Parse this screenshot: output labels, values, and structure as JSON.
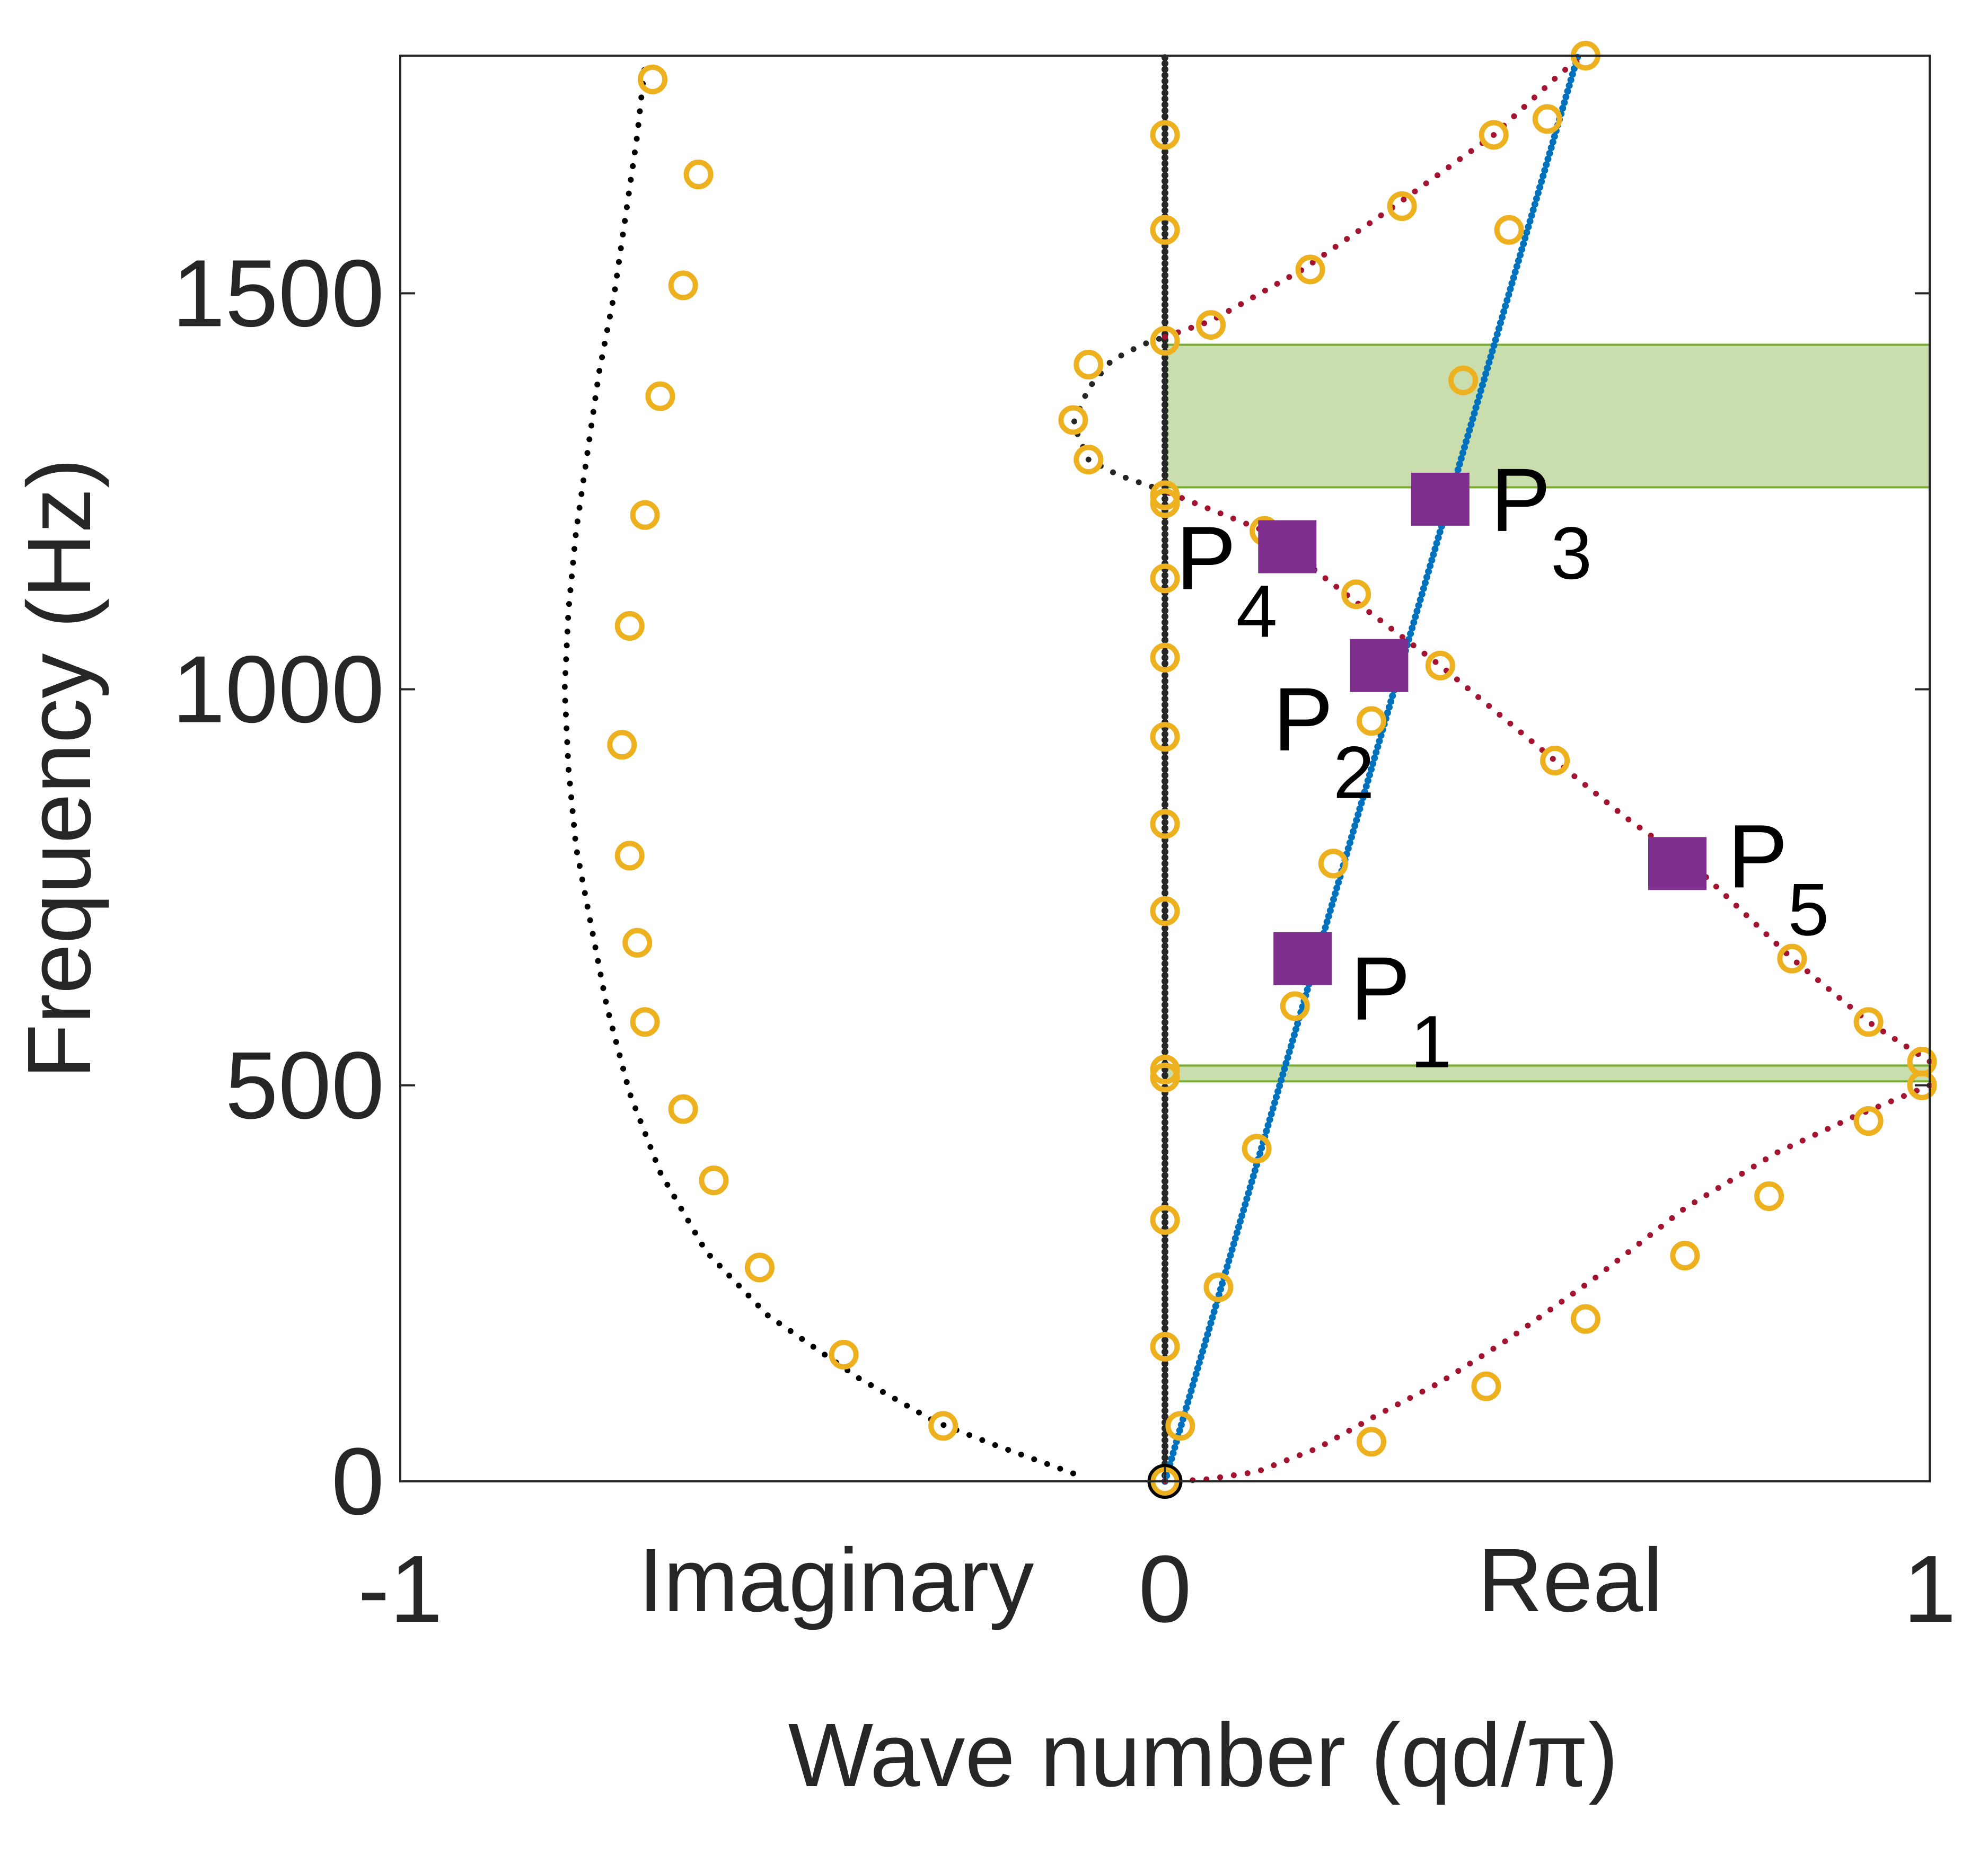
{
  "chart_data": {
    "type": "scatter",
    "title": "",
    "xlabel": "Wave number (qd/π)",
    "ylabel": "Frequency (Hz)",
    "xlim": [
      -1,
      1
    ],
    "ylim": [
      0,
      1800
    ],
    "xticks": [
      -1,
      0,
      1
    ],
    "xtick_labels": [
      "-1",
      "0",
      "1"
    ],
    "yticks": [
      0,
      500,
      1000,
      1500
    ],
    "ytick_labels": [
      "0",
      "500",
      "1000",
      "1500"
    ],
    "axis_side_labels": {
      "negative": "Imaginary",
      "positive": "Real"
    },
    "grid": false,
    "legend": "none",
    "colors": {
      "imaginary_branch": "#000000",
      "zero_line": "#262626",
      "longitudinal_branch": "#0072BD",
      "flexural_branch": "#A2142F",
      "markers": "#EDB120",
      "highlight_points": "#7E2F8E",
      "band_gap": "#77AC30"
    },
    "series": [
      {
        "role": "imaginary_branch",
        "style": "dots",
        "color": "#000000",
        "points": [
          [
            -0.12,
            10
          ],
          [
            -0.22,
            45
          ],
          [
            -0.3,
            75
          ],
          [
            -0.4,
            130
          ],
          [
            -0.52,
            210
          ],
          [
            -0.6,
            290
          ],
          [
            -0.66,
            390
          ],
          [
            -0.7,
            490
          ],
          [
            -0.73,
            600
          ],
          [
            -0.75,
            700
          ],
          [
            -0.77,
            800
          ],
          [
            -0.78,
            900
          ],
          [
            -0.785,
            1000
          ],
          [
            -0.78,
            1100
          ],
          [
            -0.77,
            1200
          ],
          [
            -0.755,
            1300
          ],
          [
            -0.74,
            1400
          ],
          [
            -0.72,
            1500
          ],
          [
            -0.705,
            1600
          ],
          [
            -0.69,
            1700
          ],
          [
            -0.68,
            1790
          ]
        ]
      },
      {
        "role": "zero_line",
        "style": "dots",
        "color": "#262626",
        "points": [
          [
            0,
            0
          ],
          [
            0,
            1800
          ]
        ]
      },
      {
        "role": "imaginary_loop",
        "style": "dots",
        "color": "#262626",
        "points": [
          [
            0,
            1250
          ],
          [
            -0.06,
            1270
          ],
          [
            -0.1,
            1290
          ],
          [
            -0.12,
            1335
          ],
          [
            -0.1,
            1380
          ],
          [
            -0.07,
            1415
          ],
          [
            -0.03,
            1435
          ],
          [
            0,
            1445
          ]
        ]
      },
      {
        "role": "longitudinal_branch",
        "style": "dots",
        "color": "#0072BD",
        "points": [
          [
            0,
            0
          ],
          [
            0.54,
            1800
          ]
        ]
      },
      {
        "role": "flexural_branch_lower",
        "style": "dots",
        "color": "#A2142F",
        "points": [
          [
            0,
            0
          ],
          [
            0.05,
            2
          ],
          [
            0.12,
            12
          ],
          [
            0.2,
            42
          ],
          [
            0.28,
            85
          ],
          [
            0.36,
            125
          ],
          [
            0.45,
            180
          ],
          [
            0.56,
            255
          ],
          [
            0.68,
            345
          ],
          [
            0.8,
            415
          ],
          [
            0.9,
            460
          ],
          [
            1,
            500
          ]
        ]
      },
      {
        "role": "flexural_branch_upper",
        "style": "dots",
        "color": "#A2142F",
        "points": [
          [
            1,
            530
          ],
          [
            0.92,
            580
          ],
          [
            0.82,
            660
          ],
          [
            0.7,
            770
          ],
          [
            0.6,
            840
          ],
          [
            0.51,
            910
          ],
          [
            0.36,
            1030
          ],
          [
            0.25,
            1110
          ],
          [
            0.13,
            1200
          ],
          [
            0,
            1250
          ]
        ]
      },
      {
        "role": "flexural_branch_top",
        "style": "dots",
        "color": "#A2142F",
        "points": [
          [
            0,
            1445
          ],
          [
            0.06,
            1465
          ],
          [
            0.18,
            1530
          ],
          [
            0.3,
            1610
          ],
          [
            0.43,
            1700
          ],
          [
            0.52,
            1780
          ],
          [
            0.55,
            1800
          ]
        ]
      }
    ],
    "markers": {
      "color": "#EDB120",
      "points": [
        [
          -0.67,
          1770
        ],
        [
          -0.61,
          1650
        ],
        [
          -0.63,
          1510
        ],
        [
          -0.66,
          1370
        ],
        [
          -0.68,
          1220
        ],
        [
          -0.7,
          1080
        ],
        [
          -0.71,
          930
        ],
        [
          -0.7,
          790
        ],
        [
          -0.69,
          680
        ],
        [
          -0.68,
          580
        ],
        [
          -0.63,
          470
        ],
        [
          -0.59,
          380
        ],
        [
          -0.53,
          270
        ],
        [
          -0.42,
          160
        ],
        [
          -0.29,
          70
        ],
        [
          0,
          1700
        ],
        [
          0,
          1580
        ],
        [
          0,
          1440
        ],
        [
          0,
          1245
        ],
        [
          0,
          1235
        ],
        [
          0,
          1140
        ],
        [
          0,
          1040
        ],
        [
          0,
          940
        ],
        [
          0,
          830
        ],
        [
          0,
          720
        ],
        [
          0,
          520
        ],
        [
          0,
          510
        ],
        [
          0,
          330
        ],
        [
          0,
          170
        ],
        [
          0.02,
          70
        ],
        [
          0.07,
          245
        ],
        [
          0.12,
          420
        ],
        [
          0.17,
          600
        ],
        [
          0.22,
          780
        ],
        [
          0.27,
          960
        ],
        [
          0.39,
          1390
        ],
        [
          0.45,
          1580
        ],
        [
          0.5,
          1720
        ],
        [
          0.55,
          1800
        ],
        [
          0.06,
          1460
        ],
        [
          0.19,
          1530
        ],
        [
          0.31,
          1610
        ],
        [
          0.43,
          1700
        ],
        [
          -0.1,
          1410
        ],
        [
          -0.12,
          1340
        ],
        [
          -0.1,
          1290
        ],
        [
          0.13,
          1200
        ],
        [
          0.25,
          1120
        ],
        [
          0.36,
          1030
        ],
        [
          0.51,
          910
        ],
        [
          0.82,
          660
        ],
        [
          0.92,
          580
        ],
        [
          0.99,
          530
        ],
        [
          0.99,
          500
        ],
        [
          0.92,
          455
        ],
        [
          0.79,
          360
        ],
        [
          0.68,
          285
        ],
        [
          0.55,
          205
        ],
        [
          0.42,
          120
        ],
        [
          0.27,
          50
        ],
        [
          0,
          0
        ]
      ]
    },
    "highlight_points": [
      {
        "label_main": "P",
        "label_sub": "1",
        "x": 0.18,
        "y": 660
      },
      {
        "label_main": "P",
        "label_sub": "2",
        "x": 0.28,
        "y": 1030
      },
      {
        "label_main": "P",
        "label_sub": "3",
        "x": 0.36,
        "y": 1240
      },
      {
        "label_main": "P",
        "label_sub": "4",
        "x": 0.16,
        "y": 1180
      },
      {
        "label_main": "P",
        "label_sub": "5",
        "x": 0.67,
        "y": 780
      }
    ],
    "band_gaps": [
      {
        "x_from": 0,
        "x_to": 1,
        "y_from": 1255,
        "y_to": 1435
      },
      {
        "x_from": 0,
        "x_to": 1,
        "y_from": 505,
        "y_to": 525
      }
    ]
  }
}
